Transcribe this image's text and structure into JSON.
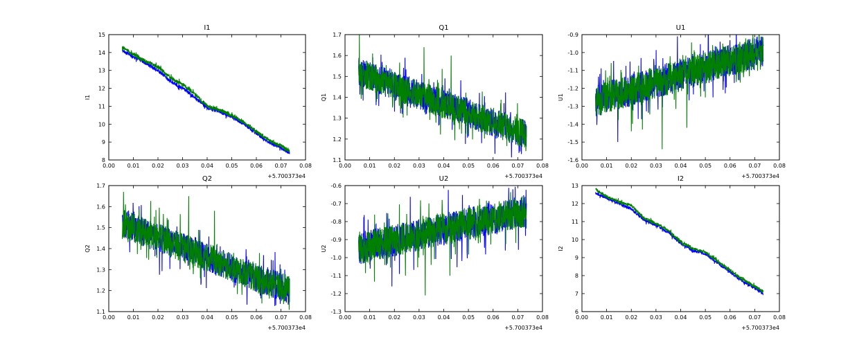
{
  "chart_data": [
    {
      "type": "line",
      "title": "I1",
      "xlabel": "",
      "ylabel": "I1",
      "x_offset_label": "+5.700373e4",
      "xlim": [
        0.0,
        0.08
      ],
      "ylim": [
        8,
        15
      ],
      "xticks": [
        "0.00",
        "0.01",
        "0.02",
        "0.03",
        "0.04",
        "0.05",
        "0.06",
        "0.07",
        "0.08"
      ],
      "yticks": [
        "8",
        "9",
        "10",
        "11",
        "12",
        "13",
        "14",
        "15"
      ],
      "series": [
        {
          "color": "#0000ff",
          "x": [
            0.0055,
            0.01,
            0.015,
            0.02,
            0.025,
            0.03,
            0.035,
            0.04,
            0.045,
            0.05,
            0.055,
            0.06,
            0.065,
            0.07,
            0.0735
          ],
          "y": [
            14.1,
            13.8,
            13.4,
            13.0,
            12.4,
            12.0,
            11.5,
            10.9,
            10.7,
            10.4,
            10.0,
            9.5,
            9.0,
            8.7,
            8.4
          ],
          "noise": 0.1,
          "spikes": []
        },
        {
          "color": "#008000",
          "x": [
            0.0055,
            0.01,
            0.015,
            0.02,
            0.025,
            0.03,
            0.035,
            0.04,
            0.045,
            0.05,
            0.055,
            0.06,
            0.065,
            0.07,
            0.0735
          ],
          "y": [
            14.3,
            13.9,
            13.5,
            13.2,
            12.6,
            12.2,
            11.7,
            11.0,
            10.8,
            10.5,
            10.1,
            9.6,
            9.1,
            8.8,
            8.5
          ],
          "noise": 0.1,
          "spikes": []
        }
      ]
    },
    {
      "type": "line",
      "title": "Q1",
      "xlabel": "",
      "ylabel": "Q1",
      "x_offset_label": "+5.700373e4",
      "xlim": [
        0.0,
        0.08
      ],
      "ylim": [
        1.1,
        1.7
      ],
      "xticks": [
        "0.00",
        "0.01",
        "0.02",
        "0.03",
        "0.04",
        "0.05",
        "0.06",
        "0.07",
        "0.08"
      ],
      "yticks": [
        "1.1",
        "1.2",
        "1.3",
        "1.4",
        "1.5",
        "1.6",
        "1.7"
      ],
      "series": [
        {
          "color": "#0000ff",
          "x": [
            0.0055,
            0.0735
          ],
          "y": [
            1.52,
            1.22
          ],
          "noise": 0.07,
          "spikes": []
        },
        {
          "color": "#008000",
          "x": [
            0.0055,
            0.0735
          ],
          "y": [
            1.52,
            1.22
          ],
          "noise": 0.07,
          "spikes": [
            [
              0.0058,
              1.7
            ],
            [
              0.032,
              1.64
            ],
            [
              0.043,
              1.6
            ]
          ]
        }
      ]
    },
    {
      "type": "line",
      "title": "U1",
      "xlabel": "",
      "ylabel": "U1",
      "x_offset_label": "+5.700373e4",
      "xlim": [
        0.0,
        0.08
      ],
      "ylim": [
        -1.6,
        -0.9
      ],
      "xticks": [
        "0.00",
        "0.01",
        "0.02",
        "0.03",
        "0.04",
        "0.05",
        "0.06",
        "0.07",
        "0.08"
      ],
      "yticks": [
        "-1.6",
        "-1.5",
        "-1.4",
        "-1.3",
        "-1.2",
        "-1.1",
        "-1.0",
        "-0.9"
      ],
      "series": [
        {
          "color": "#0000ff",
          "x": [
            0.0055,
            0.0735
          ],
          "y": [
            -1.27,
            -0.99
          ],
          "noise": 0.09,
          "spikes": [
            [
              0.0145,
              -1.5
            ]
          ]
        },
        {
          "color": "#008000",
          "x": [
            0.0055,
            0.0735
          ],
          "y": [
            -1.27,
            -0.99
          ],
          "noise": 0.09,
          "spikes": [
            [
              0.02,
              -1.44
            ],
            [
              0.0245,
              -1.43
            ],
            [
              0.0325,
              -1.54
            ],
            [
              0.0425,
              -1.42
            ]
          ]
        }
      ]
    },
    {
      "type": "line",
      "title": "Q2",
      "xlabel": "",
      "ylabel": "Q2",
      "x_offset_label": "+5.700373e4",
      "xlim": [
        0.0,
        0.08
      ],
      "ylim": [
        1.1,
        1.7
      ],
      "xticks": [
        "0.00",
        "0.01",
        "0.02",
        "0.03",
        "0.04",
        "0.05",
        "0.06",
        "0.07",
        "0.08"
      ],
      "yticks": [
        "1.1",
        "1.2",
        "1.3",
        "1.4",
        "1.5",
        "1.6",
        "1.7"
      ],
      "series": [
        {
          "color": "#0000ff",
          "x": [
            0.0055,
            0.0735
          ],
          "y": [
            1.52,
            1.2
          ],
          "noise": 0.07,
          "spikes": []
        },
        {
          "color": "#008000",
          "x": [
            0.0055,
            0.0735
          ],
          "y": [
            1.52,
            1.2
          ],
          "noise": 0.07,
          "spikes": [
            [
              0.006,
              1.67
            ],
            [
              0.0325,
              1.65
            ],
            [
              0.043,
              1.58
            ]
          ]
        }
      ]
    },
    {
      "type": "line",
      "title": "U2",
      "xlabel": "",
      "ylabel": "U2",
      "x_offset_label": "+5.700373e4",
      "xlim": [
        0.0,
        0.08
      ],
      "ylim": [
        -1.3,
        -0.6
      ],
      "xticks": [
        "0.00",
        "0.01",
        "0.02",
        "0.03",
        "0.04",
        "0.05",
        "0.06",
        "0.07",
        "0.08"
      ],
      "yticks": [
        "-1.3",
        "-1.2",
        "-1.1",
        "-1.0",
        "-0.9",
        "-0.8",
        "-0.7",
        "-0.6"
      ],
      "series": [
        {
          "color": "#0000ff",
          "x": [
            0.0055,
            0.0735
          ],
          "y": [
            -0.95,
            -0.74
          ],
          "noise": 0.09,
          "spikes": [
            [
              0.019,
              -1.16
            ]
          ]
        },
        {
          "color": "#008000",
          "x": [
            0.0055,
            0.0735
          ],
          "y": [
            -0.95,
            -0.74
          ],
          "noise": 0.09,
          "spikes": [
            [
              0.0325,
              -1.21
            ],
            [
              0.0245,
              -1.1
            ],
            [
              0.0425,
              -1.1
            ]
          ]
        }
      ]
    },
    {
      "type": "line",
      "title": "I2",
      "xlabel": "",
      "ylabel": "I2",
      "x_offset_label": "+5.700373e4",
      "xlim": [
        0.0,
        0.08
      ],
      "ylim": [
        6,
        13
      ],
      "xticks": [
        "0.00",
        "0.01",
        "0.02",
        "0.03",
        "0.04",
        "0.05",
        "0.06",
        "0.07",
        "0.08"
      ],
      "yticks": [
        "6",
        "7",
        "8",
        "9",
        "10",
        "11",
        "12",
        "13"
      ],
      "series": [
        {
          "color": "#0000ff",
          "x": [
            0.0055,
            0.01,
            0.015,
            0.02,
            0.025,
            0.03,
            0.035,
            0.04,
            0.045,
            0.05,
            0.055,
            0.06,
            0.065,
            0.07,
            0.0735
          ],
          "y": [
            12.6,
            12.3,
            12.0,
            11.7,
            11.1,
            10.8,
            10.4,
            9.8,
            9.4,
            9.2,
            8.7,
            8.2,
            7.7,
            7.3,
            7.0
          ],
          "noise": 0.08,
          "spikes": []
        },
        {
          "color": "#008000",
          "x": [
            0.0055,
            0.01,
            0.015,
            0.02,
            0.025,
            0.03,
            0.035,
            0.04,
            0.045,
            0.05,
            0.055,
            0.06,
            0.065,
            0.07,
            0.0735
          ],
          "y": [
            12.8,
            12.4,
            12.1,
            11.9,
            11.2,
            10.9,
            10.5,
            9.9,
            9.5,
            9.3,
            8.8,
            8.3,
            7.8,
            7.4,
            7.1
          ],
          "noise": 0.08,
          "spikes": []
        }
      ]
    }
  ]
}
